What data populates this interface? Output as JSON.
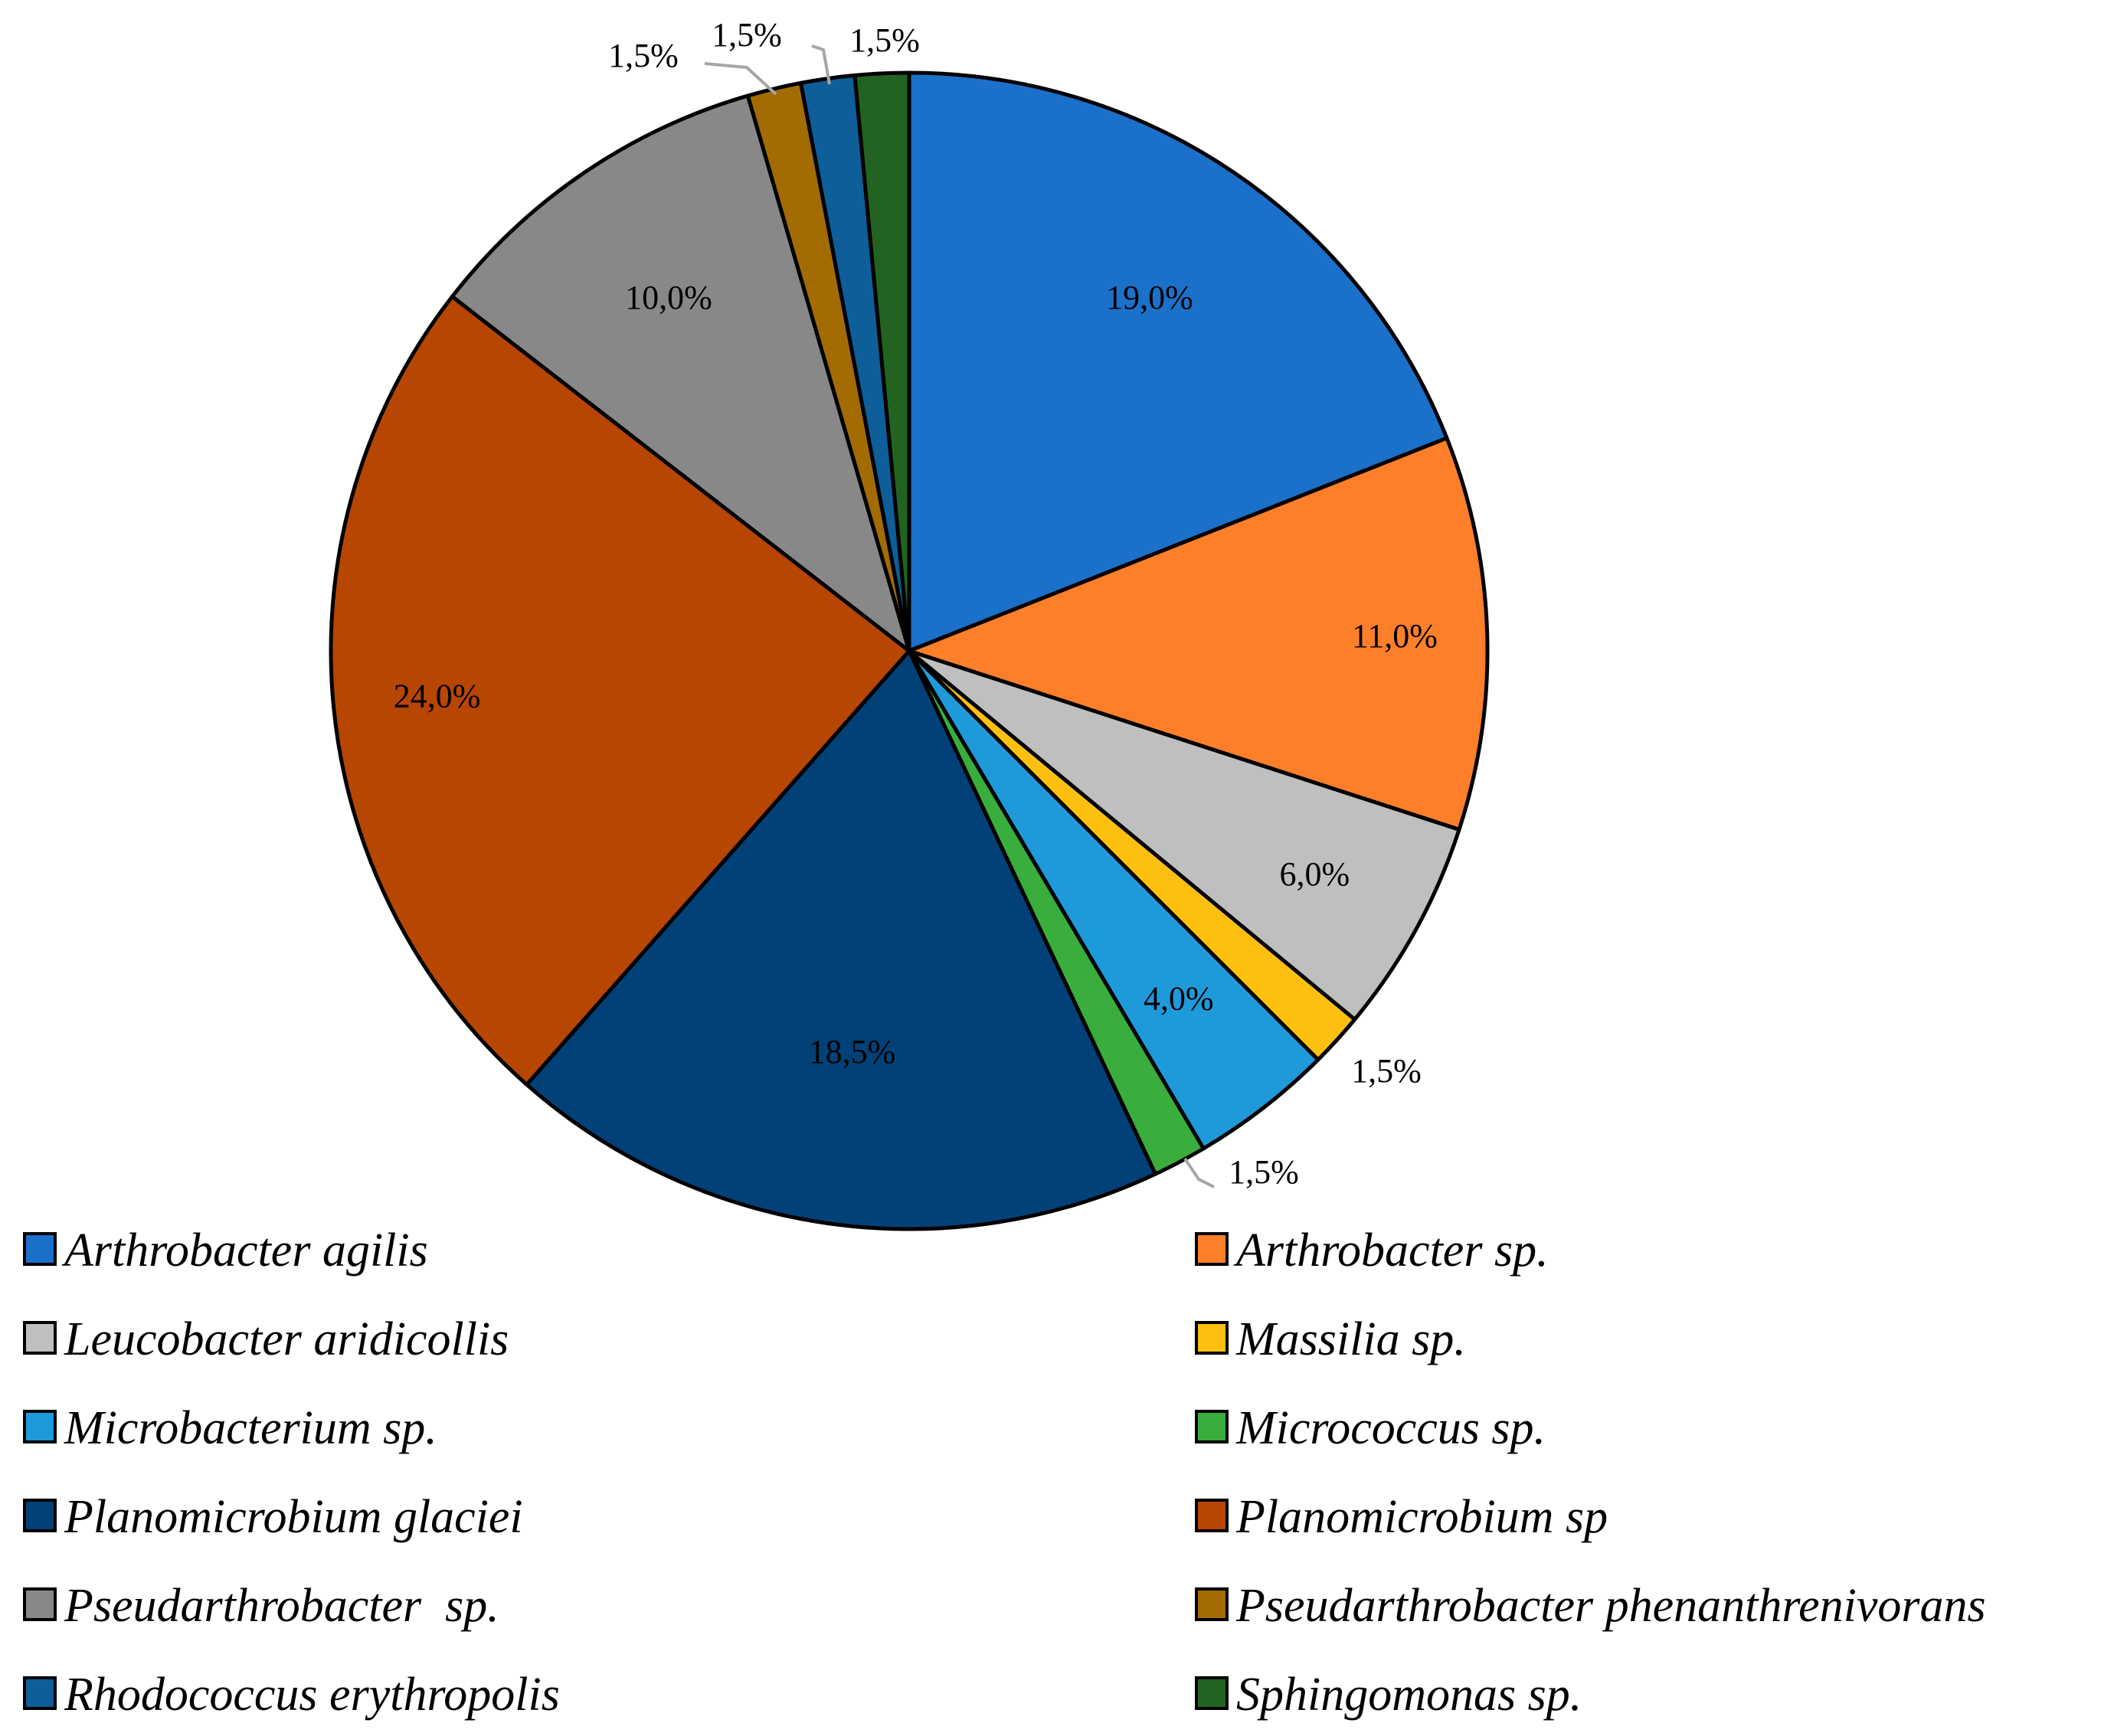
{
  "chart_data": {
    "type": "pie",
    "title": "",
    "start_angle_deg": 0,
    "direction": "clockwise",
    "slices": [
      {
        "name": "Arthrobacter agilis",
        "value": 19.0,
        "label": "19,0%",
        "color": "#1B71CA"
      },
      {
        "name": "Arthrobacter sp.",
        "value": 11.0,
        "label": "11,0%",
        "color": "#FD7F2A"
      },
      {
        "name": "Leucobacter aridicollis",
        "value": 6.0,
        "label": "6,0%",
        "color": "#BFBFBF"
      },
      {
        "name": "Massilia sp.",
        "value": 1.5,
        "label": "1,5%",
        "color": "#FDC010"
      },
      {
        "name": "Microbacterium sp.",
        "value": 4.0,
        "label": "4,0%",
        "color": "#1E9ADA"
      },
      {
        "name": "Micrococcus sp.",
        "value": 1.5,
        "label": "1,5%",
        "color": "#3AAE3C"
      },
      {
        "name": "Planomicrobium glaciei",
        "value": 18.5,
        "label": "18,5%",
        "color": "#024178"
      },
      {
        "name": "Planomicrobium sp",
        "value": 24.0,
        "label": "24,0%",
        "color": "#B64602"
      },
      {
        "name": "Pseudarthrobacter  sp.",
        "value": 10.0,
        "label": "10,0%",
        "color": "#888888"
      },
      {
        "name": "Pseudarthrobacter phenanthrenivorans",
        "value": 1.5,
        "label": "1,5%",
        "color": "#A26C03"
      },
      {
        "name": "Rhodococcus erythropolis",
        "value": 1.5,
        "label": "1,5%",
        "color": "#0D5E99"
      },
      {
        "name": "Sphingomonas sp.",
        "value": 1.5,
        "label": "1,5%",
        "color": "#236321"
      }
    ],
    "legend": {
      "position": "bottom",
      "columns": 2
    }
  }
}
